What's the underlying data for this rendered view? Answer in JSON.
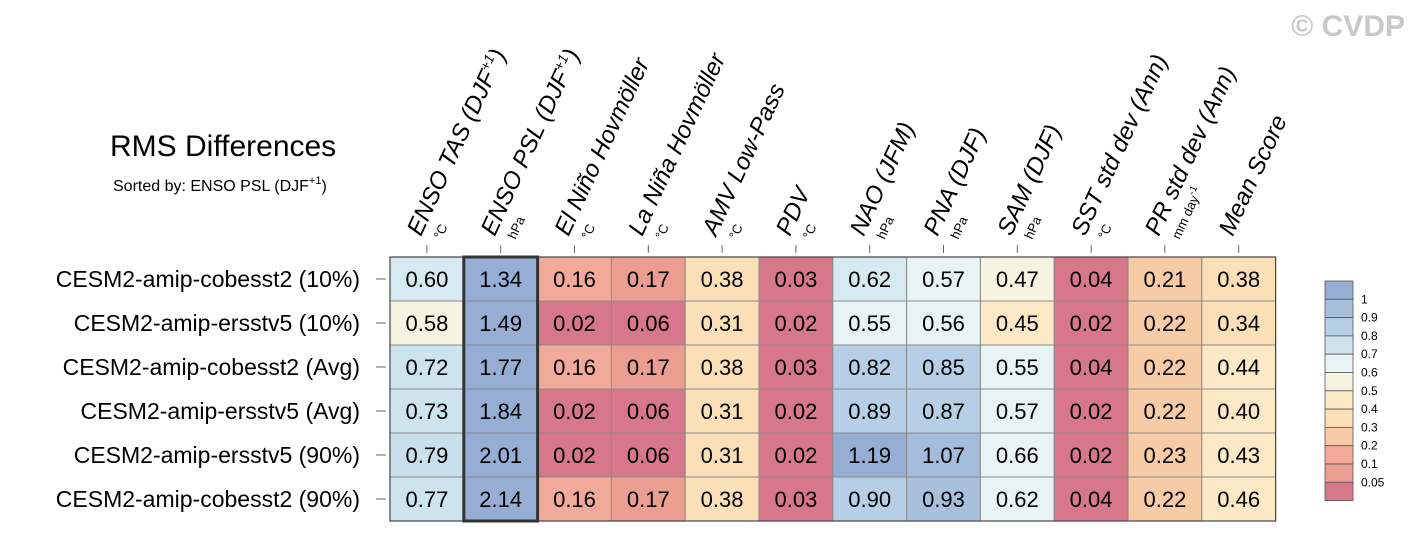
{
  "watermark": "© CVDP",
  "chart_data": {
    "type": "heatmap",
    "title": "RMS Differences",
    "subtitle_prefix": "Sorted by: ENSO PSL (DJF",
    "subtitle_sup": "+1",
    "subtitle_suffix": ")",
    "columns": [
      {
        "label": "ENSO TAS (DJF",
        "sup": "+1",
        "close": ")",
        "unit": "°C"
      },
      {
        "label": "ENSO PSL (DJF",
        "sup": "+1",
        "close": ")",
        "unit": "hPa"
      },
      {
        "label": "El Niño Hovmöller",
        "unit": "°C"
      },
      {
        "label": "La Niña Hovmöller",
        "unit": "°C"
      },
      {
        "label": "AMV Low-Pass",
        "unit": "°C"
      },
      {
        "label": "PDV",
        "unit": "°C"
      },
      {
        "label": "NAO (JFM)",
        "unit": "hPa"
      },
      {
        "label": "PNA (DJF)",
        "unit": "hPa"
      },
      {
        "label": "SAM (DJF)",
        "unit": "hPa"
      },
      {
        "label": "SST std dev (Ann)",
        "unit": "°C"
      },
      {
        "label": "PR std dev (Ann)",
        "unit": "mm day",
        "unit_sup": "-1"
      },
      {
        "label": "Mean Score",
        "unit": ""
      }
    ],
    "rows": [
      {
        "name": "CESM2-amip-cobesst2 (10%)",
        "values": [
          "0.60",
          "1.34",
          "0.16",
          "0.17",
          "0.38",
          "0.03",
          "0.62",
          "0.57",
          "0.47",
          "0.04",
          "0.21",
          "0.38"
        ]
      },
      {
        "name": "CESM2-amip-ersstv5 (10%)",
        "values": [
          "0.58",
          "1.49",
          "0.02",
          "0.06",
          "0.31",
          "0.02",
          "0.55",
          "0.56",
          "0.45",
          "0.02",
          "0.22",
          "0.34"
        ]
      },
      {
        "name": "CESM2-amip-cobesst2 (Avg)",
        "values": [
          "0.72",
          "1.77",
          "0.16",
          "0.17",
          "0.38",
          "0.03",
          "0.82",
          "0.85",
          "0.55",
          "0.04",
          "0.22",
          "0.44"
        ]
      },
      {
        "name": "CESM2-amip-ersstv5 (Avg)",
        "values": [
          "0.73",
          "1.84",
          "0.02",
          "0.06",
          "0.31",
          "0.02",
          "0.89",
          "0.87",
          "0.57",
          "0.02",
          "0.22",
          "0.40"
        ]
      },
      {
        "name": "CESM2-amip-ersstv5 (90%)",
        "values": [
          "0.79",
          "2.01",
          "0.02",
          "0.06",
          "0.31",
          "0.02",
          "1.19",
          "1.07",
          "0.66",
          "0.02",
          "0.23",
          "0.43"
        ]
      },
      {
        "name": "CESM2-amip-cobesst2 (90%)",
        "values": [
          "0.77",
          "2.14",
          "0.16",
          "0.17",
          "0.38",
          "0.03",
          "0.90",
          "0.93",
          "0.62",
          "0.04",
          "0.22",
          "0.46"
        ]
      }
    ],
    "cell_colors": [
      [
        "#d5e9f1",
        "#97aed4",
        "#f1aa9a",
        "#ec9d92",
        "#fbdfb7",
        "#d7788a",
        "#d5e9f1",
        "#e8f3f3",
        "#f6f3e0",
        "#d7788a",
        "#f8cba7",
        "#fbdfb7"
      ],
      [
        "#f6f3e0",
        "#97aed4",
        "#d7788a",
        "#d7788a",
        "#fbdfb7",
        "#d7788a",
        "#e8f3f3",
        "#e8f3f3",
        "#fbe9c6",
        "#d7788a",
        "#f8cba7",
        "#fbdfb7"
      ],
      [
        "#cde4ef",
        "#97aed4",
        "#f1aa9a",
        "#ec9d92",
        "#fbdfb7",
        "#d7788a",
        "#b7cfe6",
        "#b7cfe6",
        "#e8f3f3",
        "#d7788a",
        "#f8cba7",
        "#fbe9c6"
      ],
      [
        "#cde4ef",
        "#97aed4",
        "#d7788a",
        "#d7788a",
        "#fbdfb7",
        "#d7788a",
        "#b7cfe6",
        "#b7cfe6",
        "#e8f3f3",
        "#d7788a",
        "#f8cba7",
        "#fbe9c6"
      ],
      [
        "#c8dfec",
        "#97aed4",
        "#d7788a",
        "#d7788a",
        "#fbdfb7",
        "#d7788a",
        "#97aed4",
        "#a4bbdb",
        "#e8f3f3",
        "#d7788a",
        "#f8cba7",
        "#fbe9c6"
      ],
      [
        "#cde4ef",
        "#97aed4",
        "#f1aa9a",
        "#ec9d92",
        "#fbdfb7",
        "#d7788a",
        "#b7cfe6",
        "#a9c0dd",
        "#e8f3f3",
        "#d7788a",
        "#f8cba7",
        "#fbe9c6"
      ]
    ],
    "highlight_column": 1,
    "legend": {
      "labels": [
        "1",
        "0.9",
        "0.8",
        "0.7",
        "0.6",
        "0.5",
        "0.4",
        "0.3",
        "0.2",
        "0.1",
        "0.05"
      ],
      "colors": [
        "#97aed4",
        "#a9c0dd",
        "#b7cfe6",
        "#cde4ef",
        "#e8f3f3",
        "#f6f3e0",
        "#fbe9c6",
        "#fbdfb7",
        "#f8cba7",
        "#f1aa9a",
        "#ec9d92",
        "#d7788a"
      ]
    }
  }
}
